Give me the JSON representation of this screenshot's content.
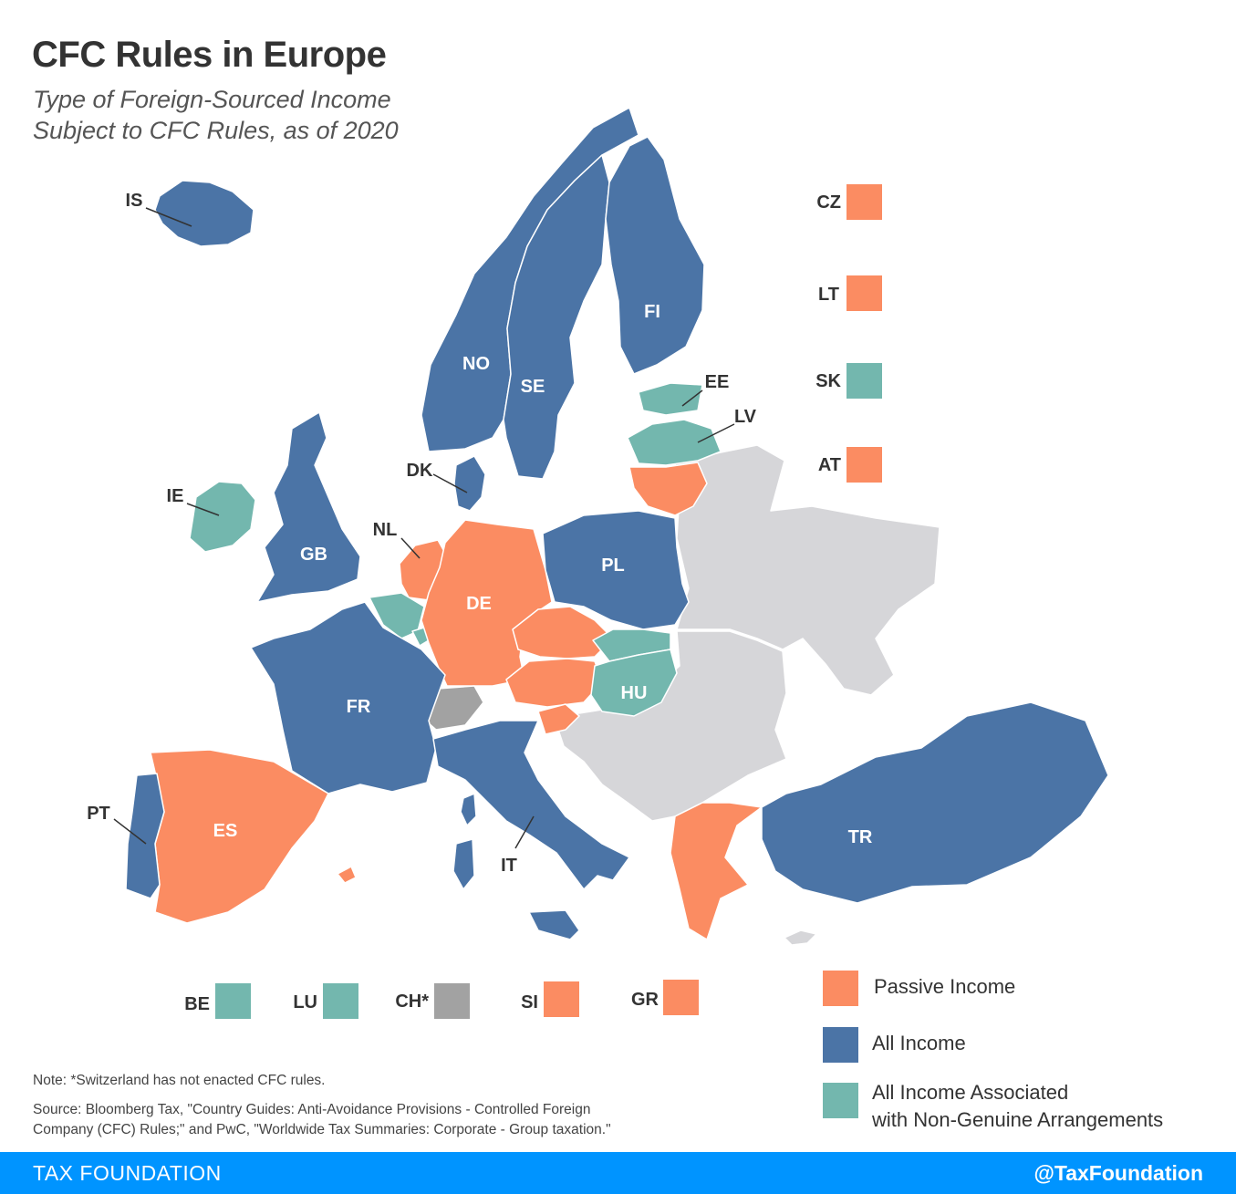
{
  "title": "CFC Rules in Europe",
  "subtitle_lines": [
    "Type of Foreign-Sourced Income",
    "Subject to CFC Rules, as of 2020"
  ],
  "colors": {
    "passive": "#fb8c62",
    "all": "#4b74a6",
    "non_genuine": "#73b7ae",
    "not_enacted": "#a2a2a2",
    "no_data": "#d6d6d9",
    "footer": "#0094ff"
  },
  "countries": {
    "IS": {
      "label": "IS",
      "category": "All Income"
    },
    "NO": {
      "label": "NO",
      "category": "All Income"
    },
    "SE": {
      "label": "SE",
      "category": "All Income"
    },
    "FI": {
      "label": "FI",
      "category": "All Income"
    },
    "DK": {
      "label": "DK",
      "category": "All Income"
    },
    "GB": {
      "label": "GB",
      "category": "All Income"
    },
    "IE": {
      "label": "IE",
      "category": "All Income Associated with Non-Genuine Arrangements"
    },
    "NL": {
      "label": "NL",
      "category": "Passive Income"
    },
    "BE": {
      "label": "BE",
      "category": "All Income Associated with Non-Genuine Arrangements"
    },
    "LU": {
      "label": "LU",
      "category": "All Income Associated with Non-Genuine Arrangements"
    },
    "DE": {
      "label": "DE",
      "category": "Passive Income"
    },
    "PL": {
      "label": "PL",
      "category": "All Income"
    },
    "CZ": {
      "label": "CZ",
      "category": "Passive Income"
    },
    "SK": {
      "label": "SK",
      "category": "All Income Associated with Non-Genuine Arrangements"
    },
    "AT": {
      "label": "AT",
      "category": "Passive Income"
    },
    "HU": {
      "label": "HU",
      "category": "All Income Associated with Non-Genuine Arrangements"
    },
    "SI": {
      "label": "SI",
      "category": "Passive Income"
    },
    "CH": {
      "label": "CH*",
      "category": "Not enacted"
    },
    "FR": {
      "label": "FR",
      "category": "All Income"
    },
    "ES": {
      "label": "ES",
      "category": "Passive Income"
    },
    "PT": {
      "label": "PT",
      "category": "All Income"
    },
    "IT": {
      "label": "IT",
      "category": "All Income"
    },
    "GR": {
      "label": "GR",
      "category": "Passive Income"
    },
    "TR": {
      "label": "TR",
      "category": "All Income"
    },
    "EE": {
      "label": "EE",
      "category": "All Income Associated with Non-Genuine Arrangements"
    },
    "LV": {
      "label": "LV",
      "category": "All Income Associated with Non-Genuine Arrangements"
    },
    "LT": {
      "label": "LT",
      "category": "Passive Income"
    }
  },
  "side_key": [
    "CZ",
    "LT",
    "SK",
    "AT"
  ],
  "bottom_key": [
    "BE",
    "LU",
    "CH*",
    "SI",
    "GR"
  ],
  "legend": [
    {
      "lines": [
        "Passive Income"
      ],
      "color": "#fb8c62"
    },
    {
      "lines": [
        "All Income"
      ],
      "color": "#4b74a6"
    },
    {
      "lines": [
        "All Income Associated",
        "with Non-Genuine Arrangements"
      ],
      "color": "#73b7ae"
    }
  ],
  "note": "Note: *Switzerland has not enacted CFC rules.",
  "source_lines": [
    "Source: Bloomberg Tax, \"Country Guides: Anti-Avoidance Provisions - Controlled Foreign",
    "Company (CFC) Rules;\" and PwC, \"Worldwide Tax Summaries: Corporate - Group taxation.\""
  ],
  "footer": {
    "brand": "TAX FOUNDATION",
    "handle": "@TaxFoundation"
  }
}
